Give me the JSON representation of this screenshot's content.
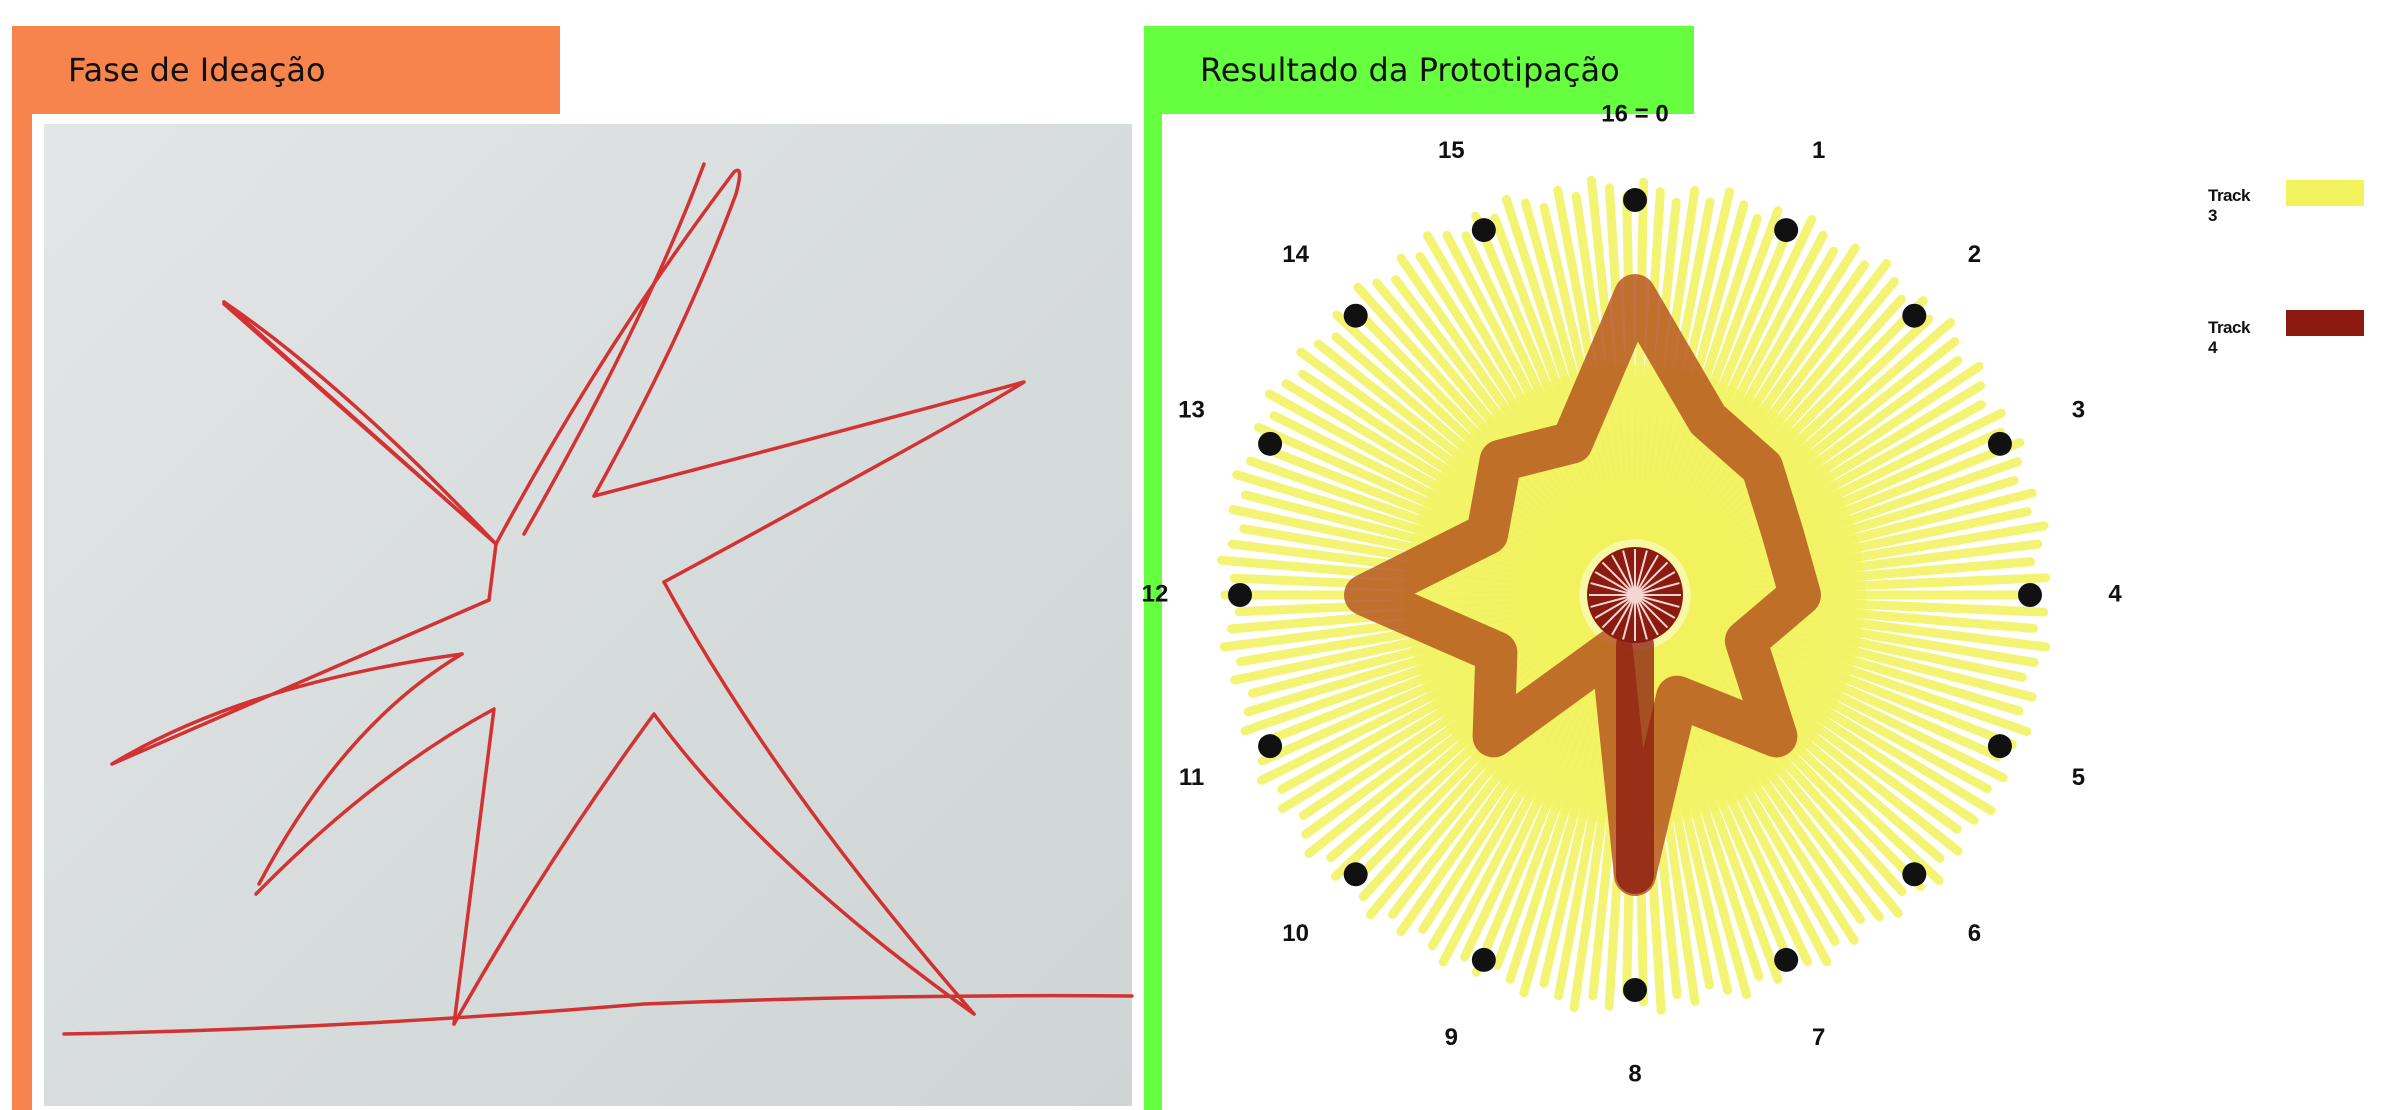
{
  "left_panel": {
    "title": "Fase de Ideação",
    "accent_color": "#f7834d"
  },
  "right_panel": {
    "title": "Resultado da Prototipação",
    "accent_color": "#66ff3f"
  },
  "clock": {
    "step_labels": [
      "16 = 0",
      "1",
      "2",
      "3",
      "4",
      "5",
      "6",
      "7",
      "8",
      "9",
      "10",
      "11",
      "12",
      "13",
      "14",
      "15"
    ],
    "track3_color": "#f2f25c",
    "track4_color": "#8b1a10"
  },
  "legend": [
    {
      "label": "Track 3",
      "color": "#f2f25c"
    },
    {
      "label": "Track 4",
      "color": "#8b1a10"
    }
  ]
}
